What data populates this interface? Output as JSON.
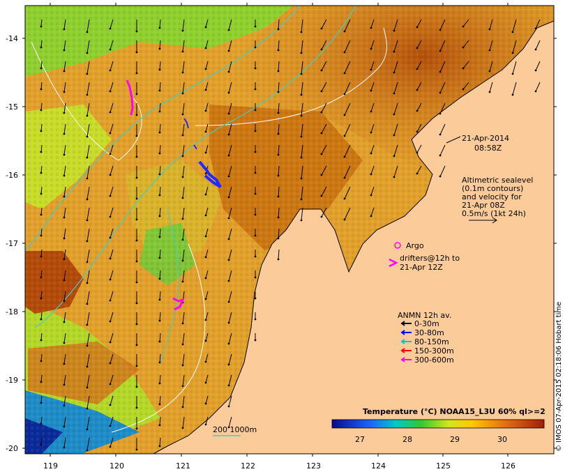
{
  "timestamp": {
    "date": "21-Apr-2014",
    "time": "08:58Z"
  },
  "altimetry_note": [
    "Altimetric sealevel",
    "(0.1m contours)",
    "and velocity for",
    "21-Apr 08Z",
    "0.5m/s (1kt 24h)"
  ],
  "argo_label": "Argo",
  "drifters_note": [
    "drifters@12h to",
    "21-Apr 12Z"
  ],
  "anmn_legend": {
    "title": "ANMN 12h av.",
    "items": [
      {
        "label": "0-30m",
        "color": "#000000"
      },
      {
        "label": "30-80m",
        "color": "#0000ff"
      },
      {
        "label": "80-150m",
        "color": "#00c8c8"
      },
      {
        "label": "150-300m",
        "color": "#ff0000"
      },
      {
        "label": "300-600m",
        "color": "#ff00ff"
      }
    ]
  },
  "colorbar": {
    "title": "Temperature (°C) NOAA15_L3U 60% ql>=2",
    "ticks": [
      "27",
      "28",
      "29",
      "30"
    ]
  },
  "isobath_label": "200  1000m",
  "axes": {
    "lon_ticks": [
      "119",
      "120",
      "121",
      "122",
      "123",
      "124",
      "125",
      "126"
    ],
    "lat_ticks": [
      "-14",
      "-15",
      "-16",
      "-17",
      "-18",
      "-19",
      "-20"
    ]
  },
  "credit": "© IMOS 07-Apr-2015 02:18:06 Hobart time",
  "colors": {
    "land": "#fccb9a",
    "warm": "#c0600a",
    "cool": "#9ed62e",
    "mid": "#e39a24",
    "current_contour": "#ffffff",
    "isobath": "#3ecfc8"
  }
}
